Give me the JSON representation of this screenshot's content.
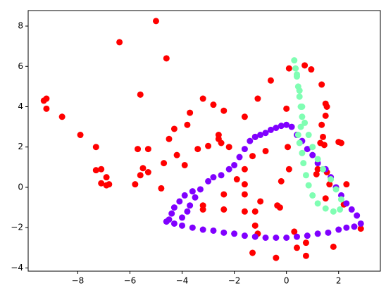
{
  "chart_data": {
    "type": "scatter",
    "xlim": [
      -9.9,
      3.6
    ],
    "ylim": [
      -4.16,
      8.77
    ],
    "xticks": [
      {
        "value": -8,
        "label": "−8"
      },
      {
        "value": -6,
        "label": "−6"
      },
      {
        "value": -4,
        "label": "−4"
      },
      {
        "value": -2,
        "label": "−2"
      },
      0,
      2
    ],
    "yticks": [
      {
        "value": -4,
        "label": "−4"
      },
      {
        "value": -2,
        "label": "−2"
      },
      0,
      2,
      4,
      6,
      8
    ],
    "grid": false,
    "series": [
      {
        "color": "#ff0000",
        "x": [
          -5.0,
          -6.4,
          -4.6,
          -5.6,
          -9.3,
          -9.2,
          -9.2,
          -8.6,
          -7.9,
          -7.3,
          -7.3,
          -7.1,
          -6.9,
          -7.1,
          -6.9,
          -6.8,
          -5.8,
          -5.6,
          -5.5,
          -5.3,
          -5.7,
          -5.3,
          -4.7,
          -4.8,
          -4.5,
          -4.3,
          -4.2,
          -3.8,
          -3.7,
          -3.9,
          -3.2,
          -3.4,
          -3.0,
          -3.2,
          -3.2,
          -2.8,
          -2.4,
          -2.6,
          -2.6,
          -2.5,
          -2.2,
          -2.4,
          -2.4,
          -1.6,
          -1.9,
          -1.6,
          -1.6,
          -1.6,
          -1.6,
          -1.3,
          -1.3,
          -1.1,
          -1.2,
          -1.0,
          -1.2,
          -1.2,
          -1.1,
          -0.8,
          -0.6,
          -0.35,
          -0.25,
          -0.4,
          -0.2,
          0,
          0.1,
          0.05,
          0.1,
          0.3,
          0.4,
          0.7,
          0.95,
          0.75,
          0.75,
          1.15,
          1.2,
          1.35,
          1.5,
          1.55,
          1.5,
          1.35,
          1.4,
          1.45,
          1.3,
          1.55,
          1.5,
          1.65,
          2.0,
          2.1,
          1.8,
          2.2,
          2.3,
          2.85
        ],
        "values": [
          8.25,
          7.2,
          6.4,
          4.6,
          4.3,
          4.4,
          3.9,
          3.5,
          2.6,
          2.0,
          0.85,
          0.9,
          0.5,
          0.2,
          0.1,
          0.15,
          0.15,
          0.6,
          0.95,
          0.75,
          1.9,
          1.9,
          1.2,
          -0.05,
          2.4,
          2.9,
          1.6,
          3.1,
          3.7,
          1.1,
          4.4,
          1.9,
          2.05,
          -0.9,
          -1.1,
          4.1,
          3.8,
          2.6,
          2.4,
          2.2,
          2.0,
          -0.35,
          -1.1,
          3.5,
          0.4,
          0.15,
          0.9,
          -0.35,
          -1.2,
          -3.25,
          1.55,
          4.4,
          2.5,
          -0.7,
          -1.2,
          -1.9,
          -2.3,
          1.8,
          5.3,
          -0.9,
          -1.0,
          -3.5,
          0.3,
          3.9,
          5.9,
          2.0,
          0.9,
          -2.2,
          -3.0,
          6.05,
          5.85,
          -2.75,
          -3.4,
          0.65,
          0.9,
          5.1,
          4.15,
          4.0,
          3.55,
          3.1,
          2.5,
          2.1,
          2.2,
          0.75,
          -0.55,
          0.15,
          2.25,
          2.2,
          -2.95,
          -0.85,
          0.15,
          -2.05
        ]
      },
      {
        "color": "#8000ff",
        "x": [
          -4.6,
          -4.5,
          -4.4,
          -4.3,
          -4.1,
          -3.9,
          -3.6,
          -3.3,
          -3.0,
          -2.8,
          -2.5,
          -2.2,
          -2.0,
          -1.8,
          -1.6,
          -1.4,
          -1.2,
          -1.0,
          -0.8,
          -0.6,
          -0.4,
          -0.2,
          0,
          0.2,
          0.4,
          0.6,
          0.8,
          1.0,
          1.2,
          1.5,
          1.7,
          1.9,
          2.1,
          2.3,
          2.5,
          2.7,
          2.85,
          2.6,
          2.3,
          2.0,
          1.6,
          1.2,
          0.8,
          0.4,
          0,
          -0.4,
          -0.8,
          -1.2,
          -1.6,
          -2.0,
          -2.4,
          -2.8,
          -3.2,
          -3.6,
          -4.0,
          -4.3,
          -3.8,
          -3.7,
          -4.0,
          -3.5
        ],
        "values": [
          -1.7,
          -1.6,
          -1.3,
          -1.0,
          -0.7,
          -0.4,
          -0.2,
          -0.1,
          0.3,
          0.5,
          0.6,
          0.9,
          1.1,
          1.5,
          1.9,
          2.3,
          2.5,
          2.6,
          2.7,
          2.85,
          2.95,
          3.05,
          3.1,
          3.0,
          2.6,
          2.3,
          1.9,
          1.6,
          1.2,
          0.9,
          0.5,
          0.0,
          -0.4,
          -0.8,
          -1.1,
          -1.4,
          -1.8,
          -1.95,
          -2.0,
          -2.1,
          -2.25,
          -2.3,
          -2.4,
          -2.45,
          -2.5,
          -2.5,
          -2.5,
          -2.45,
          -2.4,
          -2.3,
          -2.25,
          -2.15,
          -2.1,
          -2.0,
          -1.9,
          -1.8,
          -1.2,
          -0.9,
          -1.5,
          -0.5
        ]
      },
      {
        "color": "#80feb3",
        "x": [
          0.3,
          0.35,
          0.4,
          0.45,
          0.5,
          0.55,
          0.6,
          0.55,
          0.45,
          0.5,
          0.6,
          0.65,
          0.75,
          0.85,
          1.0,
          1.2,
          1.5,
          1.8,
          2.05,
          2.1,
          1.9,
          1.7,
          1.4,
          1.2,
          1.0,
          0.85,
          0.7,
          0.6,
          0.5,
          0.4
        ],
        "values": [
          6.3,
          5.9,
          5.5,
          5.0,
          4.5,
          4.0,
          3.5,
          3.0,
          2.6,
          2.2,
          1.7,
          1.2,
          0.6,
          0.1,
          -0.4,
          -0.8,
          -1.05,
          -1.2,
          -1.1,
          -0.6,
          -0.1,
          0.4,
          0.9,
          1.4,
          2.0,
          2.6,
          3.2,
          4.0,
          4.8,
          5.6
        ]
      }
    ]
  }
}
